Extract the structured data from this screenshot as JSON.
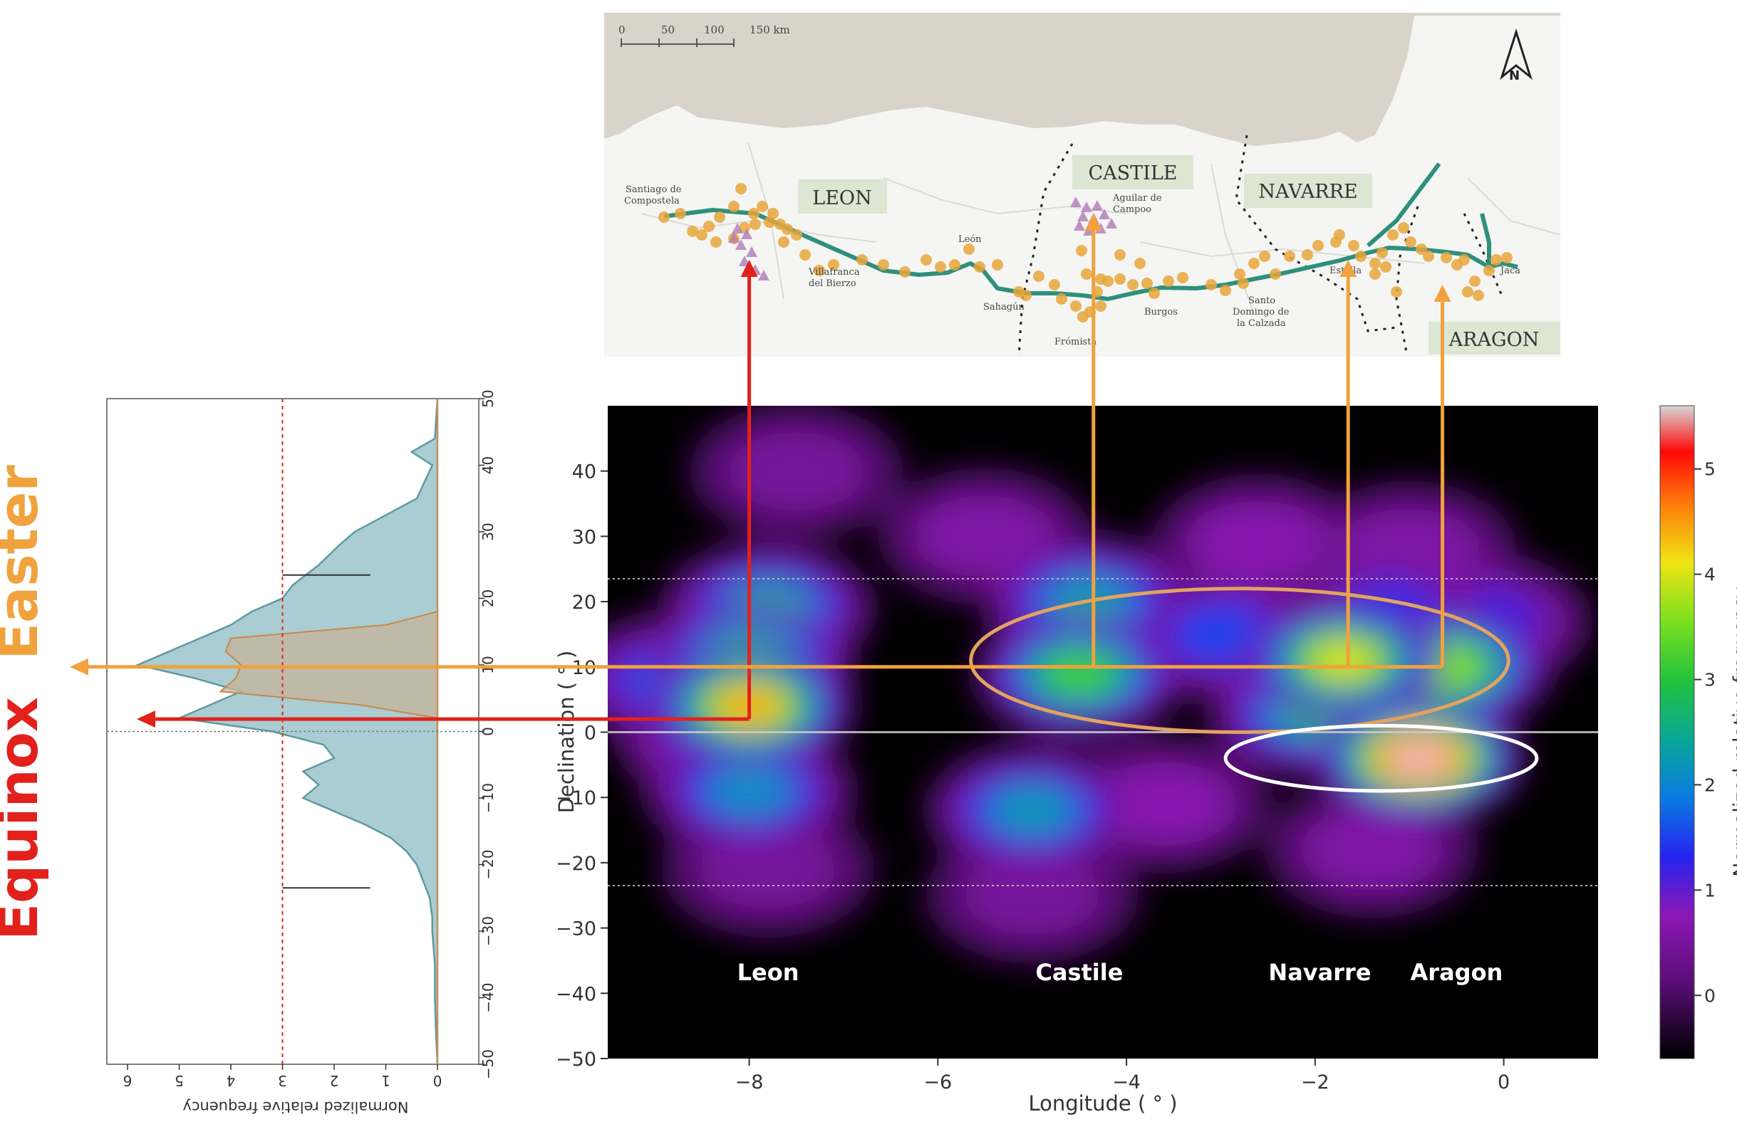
{
  "colors": {
    "background": "#ffffff",
    "equinox": "#e2211c",
    "easter": "#f0a23c",
    "route": "#2f8f7d",
    "sites": "#e7a63a",
    "triangles": "#b07ab8",
    "sea": "#dad3c9",
    "land": "#f5f5f3",
    "histogram_fill": "#a9cdd3",
    "histogram_line": "#5f9aa0",
    "easter_fill": "#c7b39a",
    "ellipse_orange": "#e2a360",
    "ellipse_white": "#ffffff"
  },
  "annotations": {
    "easter": "Easter",
    "equinox": "Equinox",
    "regions_on_heatmap": [
      "Leon",
      "Castile",
      "Navarre",
      "Aragon"
    ]
  },
  "map": {
    "scale_labels": [
      "0",
      "50",
      "100",
      "150 km"
    ],
    "north": "N",
    "regions": [
      "LEON",
      "CASTILE",
      "NAVARRE",
      "ARAGON"
    ],
    "places": [
      "Santiago de",
      "Compostela",
      "Villafranca",
      "del Bierzo",
      "León",
      "Sahagún",
      "Frómista",
      "Aguilar de",
      "Campoo",
      "Burgos",
      "Santo",
      "Domingo de",
      "la Calzada",
      "Estella",
      "Jaca"
    ]
  },
  "chart_data": [
    {
      "type": "heatmap",
      "xlabel": "Longitude ( ° )",
      "ylabel": "Declination ( ° )",
      "xlim": [
        -9.5,
        1
      ],
      "ylim": [
        -50,
        50
      ],
      "xticks": [
        -8,
        -6,
        -4,
        -2,
        0
      ],
      "yticks": [
        40,
        30,
        20,
        10,
        0,
        -10,
        -20,
        -30,
        -40,
        -50
      ],
      "xtick_labels": [
        "−8",
        "−6",
        "−4",
        "−2",
        "0"
      ],
      "ytick_labels": [
        "40",
        "30",
        "20",
        "10",
        "0",
        "−10",
        "−20",
        "−30",
        "−40",
        "−50"
      ],
      "reference_lines": [
        23.5,
        0,
        -23.5
      ],
      "regions": [
        {
          "name": "Leon",
          "x": -7.8
        },
        {
          "name": "Castile",
          "x": -4.5
        },
        {
          "name": "Navarre",
          "x": -1.95
        },
        {
          "name": "Aragon",
          "x": -0.5
        }
      ],
      "hotspots": [
        {
          "x": -0.9,
          "y": -4,
          "value": 5.5
        },
        {
          "x": -8.0,
          "y": 4,
          "value": 4.4
        },
        {
          "x": -1.7,
          "y": 11,
          "value": 4.0
        },
        {
          "x": -0.6,
          "y": 10,
          "value": 3.6
        },
        {
          "x": -4.5,
          "y": 9,
          "value": 3.2
        },
        {
          "x": -8.0,
          "y": 11,
          "value": 3.0
        },
        {
          "x": -7.8,
          "y": 19,
          "value": 2.4
        },
        {
          "x": -4.4,
          "y": 20,
          "value": 2.3
        },
        {
          "x": -5.0,
          "y": -12,
          "value": 2.2
        },
        {
          "x": -8.0,
          "y": -9,
          "value": 2.1
        },
        {
          "x": -2.0,
          "y": 3,
          "value": 2.6
        },
        {
          "x": -8.8,
          "y": 8,
          "value": 1.6
        },
        {
          "x": -3.0,
          "y": 15,
          "value": 1.5
        },
        {
          "x": -1.2,
          "y": 18,
          "value": 1.4
        },
        {
          "x": -0.2,
          "y": 17,
          "value": 1.2
        },
        {
          "x": -8.3,
          "y": -1,
          "value": 1.3
        },
        {
          "x": -3.6,
          "y": -11,
          "value": 0.7
        },
        {
          "x": -1.4,
          "y": -18,
          "value": 0.6
        },
        {
          "x": -7.8,
          "y": -21,
          "value": 0.5
        },
        {
          "x": -5.0,
          "y": -25,
          "value": 0.5
        },
        {
          "x": -7.5,
          "y": 40,
          "value": 0.5
        },
        {
          "x": -5.5,
          "y": 30,
          "value": 0.6
        },
        {
          "x": -2.6,
          "y": 29,
          "value": 0.7
        },
        {
          "x": -1.0,
          "y": 28,
          "value": 0.6
        }
      ],
      "ellipses": [
        {
          "color": "orange",
          "cx": -2.8,
          "cy": 11,
          "rx": 2.85,
          "ry": 11
        },
        {
          "color": "white",
          "cx": -1.3,
          "cy": -4,
          "rx": 1.65,
          "ry": 5
        }
      ],
      "arrows": [
        {
          "color": "equinox",
          "from_x": -8.0,
          "from_y": 2,
          "to": "map",
          "horizontal_to": "histogram"
        },
        {
          "color": "easter",
          "from_x": -4.35,
          "from_y": 10,
          "to": "map"
        },
        {
          "color": "easter",
          "from_x": -1.65,
          "from_y": 10,
          "to": "map"
        },
        {
          "color": "easter",
          "from_x": -0.65,
          "from_y": 10,
          "to": "map",
          "horizontal_to": "histogram"
        }
      ]
    },
    {
      "type": "colorbar",
      "label": "Normalized relative frequency",
      "range": [
        -0.6,
        5.6
      ],
      "ticks": [
        0,
        1,
        2,
        3,
        4,
        5
      ],
      "tick_labels": [
        "0",
        "1",
        "2",
        "3",
        "4",
        "5"
      ]
    },
    {
      "type": "area",
      "orientation": "rotated 180°",
      "ylabel": "Normalized relative frequency",
      "declination_ticks": [
        50,
        40,
        30,
        20,
        10,
        0,
        -10,
        -20,
        -30,
        -40,
        -50
      ],
      "declination_tick_labels": [
        "50",
        "40",
        "30",
        "20",
        "10",
        "0",
        "−10",
        "−20",
        "−30",
        "−40",
        "−50"
      ],
      "frequency_ticks": [
        6,
        5,
        4,
        3,
        2,
        1,
        0
      ],
      "frequency_tick_labels": [
        "6",
        "5",
        "4",
        "3",
        "2",
        "1",
        "0"
      ],
      "xlim": [
        -0.8,
        6.4
      ],
      "ylim": [
        -50,
        50
      ],
      "threshold": 3,
      "series": [
        {
          "values_declination": [
            50,
            44,
            42,
            40,
            35,
            30,
            28,
            25,
            22,
            20,
            18,
            16,
            14,
            12,
            10,
            8,
            6,
            4,
            2,
            0,
            -2,
            -4,
            -6,
            -8,
            -10,
            -12,
            -14,
            -16,
            -18,
            -20,
            -22,
            -25,
            -28,
            -30,
            -35,
            -40,
            -45,
            -50
          ],
          "values_frequency": [
            0,
            0.05,
            0.5,
            0.1,
            0.4,
            1.6,
            1.9,
            2.3,
            2.8,
            3.0,
            3.6,
            4.0,
            4.6,
            5.2,
            5.8,
            4.7,
            3.8,
            4.4,
            5.0,
            3.2,
            2.2,
            2.0,
            2.6,
            2.3,
            2.6,
            2.0,
            1.4,
            0.9,
            0.6,
            0.4,
            0.3,
            0.15,
            0.1,
            0.1,
            0.05,
            0.05,
            0.03,
            0.0
          ]
        },
        {
          "values_declination": [
            18,
            16,
            14,
            12,
            10,
            8,
            6,
            4,
            2
          ],
          "values_frequency": [
            0,
            1.0,
            4.0,
            4.1,
            3.8,
            3.9,
            4.2,
            1.5,
            0
          ]
        }
      ],
      "arrows": [
        {
          "color": "easter",
          "y": 10
        },
        {
          "color": "equinox",
          "y": 2
        }
      ]
    }
  ]
}
